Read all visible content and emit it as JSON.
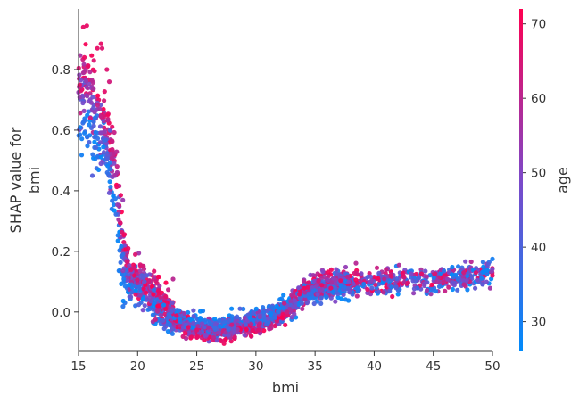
{
  "chart_data": {
    "type": "scatter",
    "title": "",
    "xlabel": "bmi",
    "ylabel_lines": [
      "SHAP value for",
      "bmi"
    ],
    "xlim": [
      15,
      50
    ],
    "ylim": [
      -0.13,
      1.0
    ],
    "x_ticks": [
      15,
      20,
      25,
      30,
      35,
      40,
      45,
      50
    ],
    "y_ticks": [
      0.0,
      0.2,
      0.4,
      0.6,
      0.8
    ],
    "y_tick_labels": [
      "0.0",
      "0.2",
      "0.4",
      "0.6",
      "0.8"
    ],
    "grid": false,
    "color_feature": "age",
    "colorbar": {
      "label": "age",
      "range": [
        26,
        72
      ],
      "ticks": [
        30,
        40,
        50,
        60,
        70
      ],
      "color_low": "#008bfb",
      "color_mid": "#7c49c9",
      "color_high": "#ff0051"
    },
    "trend": [
      [
        15.0,
        0.68
      ],
      [
        15.5,
        0.7
      ],
      [
        16.0,
        0.68
      ],
      [
        16.5,
        0.64
      ],
      [
        17.0,
        0.6
      ],
      [
        17.5,
        0.54
      ],
      [
        18.0,
        0.44
      ],
      [
        18.3,
        0.34
      ],
      [
        18.6,
        0.24
      ],
      [
        19.0,
        0.14
      ],
      [
        19.5,
        0.11
      ],
      [
        20.0,
        0.1
      ],
      [
        20.5,
        0.08
      ],
      [
        21.0,
        0.06
      ],
      [
        21.5,
        0.04
      ],
      [
        22.0,
        0.02
      ],
      [
        22.5,
        0.0
      ],
      [
        23.0,
        -0.02
      ],
      [
        24.0,
        -0.04
      ],
      [
        25.0,
        -0.05
      ],
      [
        26.0,
        -0.055
      ],
      [
        27.0,
        -0.06
      ],
      [
        28.0,
        -0.05
      ],
      [
        29.0,
        -0.04
      ],
      [
        30.0,
        -0.03
      ],
      [
        31.0,
        -0.02
      ],
      [
        32.0,
        -0.005
      ],
      [
        32.7,
        0.01
      ],
      [
        33.2,
        0.03
      ],
      [
        33.6,
        0.05
      ],
      [
        34.0,
        0.065
      ],
      [
        35.0,
        0.075
      ],
      [
        36.0,
        0.085
      ],
      [
        37.0,
        0.09
      ],
      [
        38.0,
        0.095
      ],
      [
        40.0,
        0.1
      ],
      [
        42.0,
        0.1
      ],
      [
        44.0,
        0.105
      ],
      [
        46.0,
        0.11
      ],
      [
        48.0,
        0.115
      ],
      [
        50.0,
        0.125
      ]
    ],
    "outliers": [
      {
        "x": 15.4,
        "y": 0.94,
        "age": 68
      },
      {
        "x": 15.7,
        "y": 0.945,
        "age": 68
      },
      {
        "x": 16.6,
        "y": 0.87,
        "age": 68
      },
      {
        "x": 16.9,
        "y": 0.885,
        "age": 68
      },
      {
        "x": 17.0,
        "y": 0.87,
        "age": 66
      },
      {
        "x": 15.8,
        "y": 0.81,
        "age": 68
      },
      {
        "x": 16.3,
        "y": 0.83,
        "age": 66
      },
      {
        "x": 17.4,
        "y": 0.8,
        "age": 66
      },
      {
        "x": 17.6,
        "y": 0.76,
        "age": 64
      },
      {
        "x": 15.1,
        "y": 0.75,
        "age": 68
      },
      {
        "x": 15.2,
        "y": 0.73,
        "age": 66
      },
      {
        "x": 16.0,
        "y": 0.64,
        "age": 64
      },
      {
        "x": 15.5,
        "y": 0.59,
        "age": 30
      },
      {
        "x": 16.2,
        "y": 0.52,
        "age": 34
      },
      {
        "x": 15.9,
        "y": 0.56,
        "age": 40
      },
      {
        "x": 50.0,
        "y": 0.175,
        "age": 30
      },
      {
        "x": 49.2,
        "y": 0.165,
        "age": 34
      },
      {
        "x": 47.1,
        "y": 0.15,
        "age": 32
      },
      {
        "x": 46.6,
        "y": 0.148,
        "age": 28
      },
      {
        "x": 50.0,
        "y": 0.12,
        "age": 68
      },
      {
        "x": 48.6,
        "y": 0.13,
        "age": 66
      },
      {
        "x": 45.9,
        "y": 0.135,
        "age": 34
      },
      {
        "x": 42.1,
        "y": 0.155,
        "age": 58
      },
      {
        "x": 41.0,
        "y": 0.14,
        "age": 62
      },
      {
        "x": 19.8,
        "y": 0.19,
        "age": 66
      },
      {
        "x": 19.2,
        "y": 0.21,
        "age": 68
      },
      {
        "x": 29.5,
        "y": -0.02,
        "age": 30
      },
      {
        "x": 25.3,
        "y": -0.02,
        "age": 28
      },
      {
        "x": 23.5,
        "y": 0.005,
        "age": 32
      }
    ]
  }
}
